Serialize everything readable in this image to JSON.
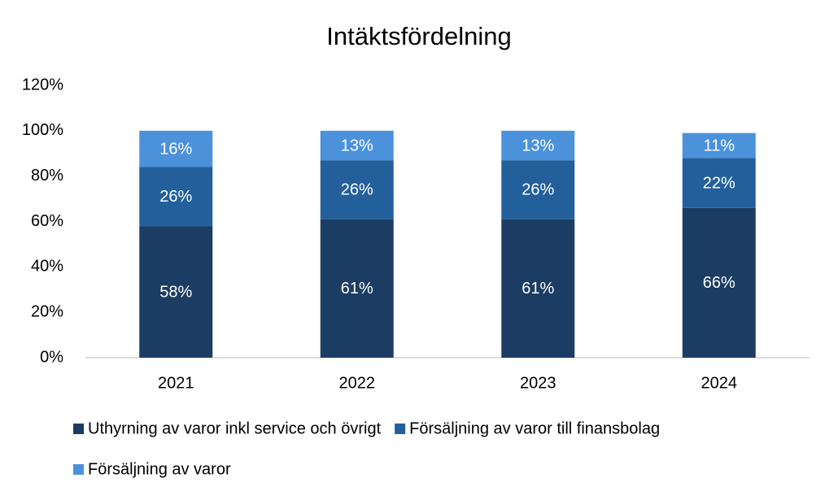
{
  "chart_data": {
    "type": "stacked_bar",
    "title": "Intäktsfördelning",
    "categories": [
      "2021",
      "2022",
      "2023",
      "2024"
    ],
    "series": [
      {
        "name": "Uthyrning av varor inkl service och övrigt",
        "color": "#1b3d63",
        "values": [
          58,
          61,
          61,
          66
        ],
        "value_labels": [
          "58%",
          "61%",
          "61%",
          "66%"
        ]
      },
      {
        "name": "Försäljning av varor till finansbolag",
        "color": "#23609b",
        "values": [
          26,
          26,
          26,
          22
        ],
        "value_labels": [
          "26%",
          "26%",
          "26%",
          "22%"
        ]
      },
      {
        "name": "Försäljning av varor",
        "color": "#4b92db",
        "values": [
          16,
          13,
          13,
          11
        ],
        "value_labels": [
          "16%",
          "13%",
          "13%",
          "11%"
        ]
      }
    ],
    "ylim": [
      0,
      120
    ],
    "yticks": [
      {
        "value": 0,
        "label": "0%"
      },
      {
        "value": 20,
        "label": "20%"
      },
      {
        "value": 40,
        "label": "40%"
      },
      {
        "value": 60,
        "label": "60%"
      },
      {
        "value": 80,
        "label": "80%"
      },
      {
        "value": 100,
        "label": "100%"
      },
      {
        "value": 120,
        "label": "120%"
      }
    ],
    "grid": false,
    "legend": "bottom"
  }
}
